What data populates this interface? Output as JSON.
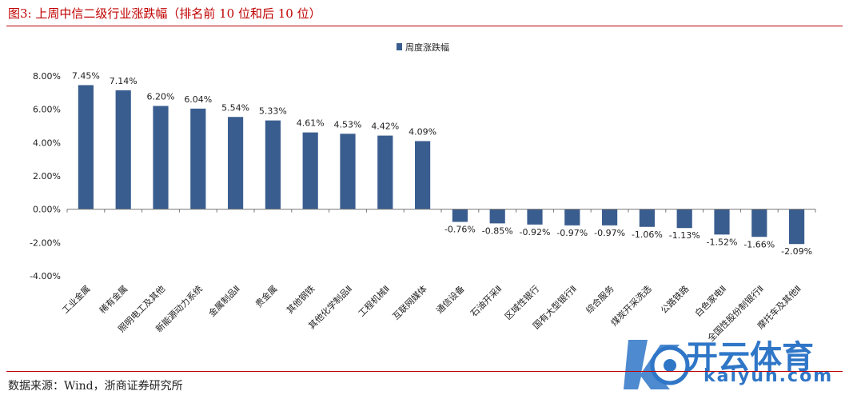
{
  "figure": {
    "title": "图3:   上周中信二级行业涨跌幅（排名前 10 位和后 10 位）",
    "source": "数据来源：Wind，浙商证券研究所"
  },
  "watermark": {
    "brand_cn": "开云体育",
    "brand_en": "kaiyun.com"
  },
  "colors": {
    "title": "#c00000",
    "bar": "#3a5d8f",
    "watermark": "#2f76c7"
  },
  "chart_data": {
    "type": "bar",
    "title": "",
    "xlabel": "",
    "ylabel": "",
    "ylim": [
      -4,
      8
    ],
    "yticks": [
      8,
      6,
      4,
      2,
      0,
      -2,
      -4
    ],
    "ytick_labels": [
      "8.00%",
      "6.00%",
      "4.00%",
      "2.00%",
      "0.00%",
      "-2.00%",
      "-4.00%"
    ],
    "legend": {
      "position": "top-center",
      "entries": [
        "周度涨跌幅"
      ]
    },
    "categories": [
      "工业金属",
      "稀有金属",
      "照明电工及其他",
      "新能源动力系统",
      "金属制品Ⅱ",
      "贵金属",
      "其他钢铁",
      "其他化学制品Ⅱ",
      "工程机械Ⅱ",
      "互联网媒体",
      "通信设备",
      "石油开采Ⅱ",
      "区域性银行",
      "国有大型银行Ⅱ",
      "综合服务",
      "煤炭开采洗选",
      "公路铁路",
      "白色家电Ⅱ",
      "全国性股份制银行Ⅱ",
      "摩托车及其他Ⅱ"
    ],
    "series": [
      {
        "name": "周度涨跌幅",
        "values": [
          7.45,
          7.14,
          6.2,
          6.04,
          5.54,
          5.33,
          4.61,
          4.53,
          4.42,
          4.09,
          -0.76,
          -0.85,
          -0.92,
          -0.97,
          -0.97,
          -1.06,
          -1.13,
          -1.52,
          -1.66,
          -2.09
        ],
        "labels": [
          "7.45%",
          "7.14%",
          "6.20%",
          "6.04%",
          "5.54%",
          "5.33%",
          "4.61%",
          "4.53%",
          "4.42%",
          "4.09%",
          "-0.76%",
          "-0.85%",
          "-0.92%",
          "-0.97%",
          "-0.97%",
          "-1.06%",
          "-1.13%",
          "-1.52%",
          "-1.66%",
          "-2.09%"
        ]
      }
    ]
  }
}
